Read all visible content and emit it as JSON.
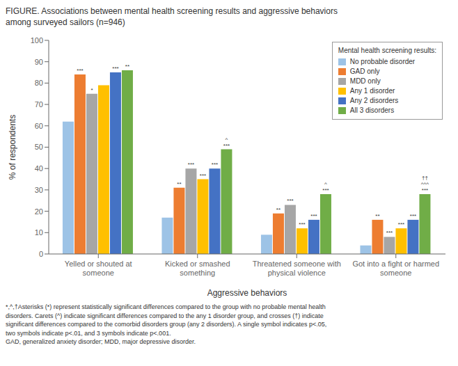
{
  "chart_data": {
    "type": "bar",
    "title": "FIGURE. Associations between mental health screening results and aggressive behaviors\namong surveyed sailors (n=946)",
    "footnote": "*,^,†Asterisks (*) represent statistically significant differences compared to the group with no probable mental health\ndisorders. Carets (^) indicate significant differences compared to the any 1 disorder group, and crosses (†) indicate\nsignificant differences compared to the comorbid disorders group (any 2 disorders). A single symbol indicates p<.05,\ntwo symbols indicate p<.01, and 3 symbols indicate p<.001.\nGAD, generalized anxiety disorder; MDD, major depressive disorder.",
    "categories": [
      "Yelled or shouted at\nsomeone",
      "Kicked or smashed\nsomething",
      "Threatened someone with\nphysical violence",
      "Got into a fight or harmed\nsomeone"
    ],
    "series": [
      {
        "name": "No probable disorder",
        "color": "#9DC3E6",
        "values": [
          62,
          17,
          9,
          4
        ]
      },
      {
        "name": "GAD only",
        "color": "#ED7D31",
        "values": [
          84,
          31,
          19,
          16
        ],
        "annotations": [
          "***",
          "**",
          "**",
          "**"
        ]
      },
      {
        "name": "MDD only",
        "color": "#A6A6A6",
        "values": [
          75,
          40,
          23,
          8
        ],
        "annotations": [
          "*",
          "***",
          "***",
          "***"
        ]
      },
      {
        "name": "Any 1 disorder",
        "color": "#FFC000",
        "values": [
          79,
          35,
          12,
          12
        ],
        "annotations": [
          null,
          "***",
          "***",
          "***"
        ]
      },
      {
        "name": "Any 2 disorders",
        "color": "#4472C4",
        "values": [
          85,
          40,
          16,
          16
        ],
        "annotations": [
          "***",
          "***",
          "***",
          "***"
        ]
      },
      {
        "name": "All 3 disorders",
        "color": "#70AD47",
        "values": [
          86,
          49,
          28,
          28
        ],
        "annotations": [
          "**",
          "^\n***",
          "^\n***",
          "††\n^^^\n***"
        ]
      }
    ],
    "ylabel": "% of respondents",
    "xlabel": "Aggressive behaviors",
    "ylim": [
      0,
      100
    ],
    "yticks": [
      0,
      10,
      20,
      30,
      40,
      50,
      60,
      70,
      80,
      90,
      100
    ],
    "legend_title": "Mental health screening results:",
    "legend": "upper right",
    "grid": false
  }
}
